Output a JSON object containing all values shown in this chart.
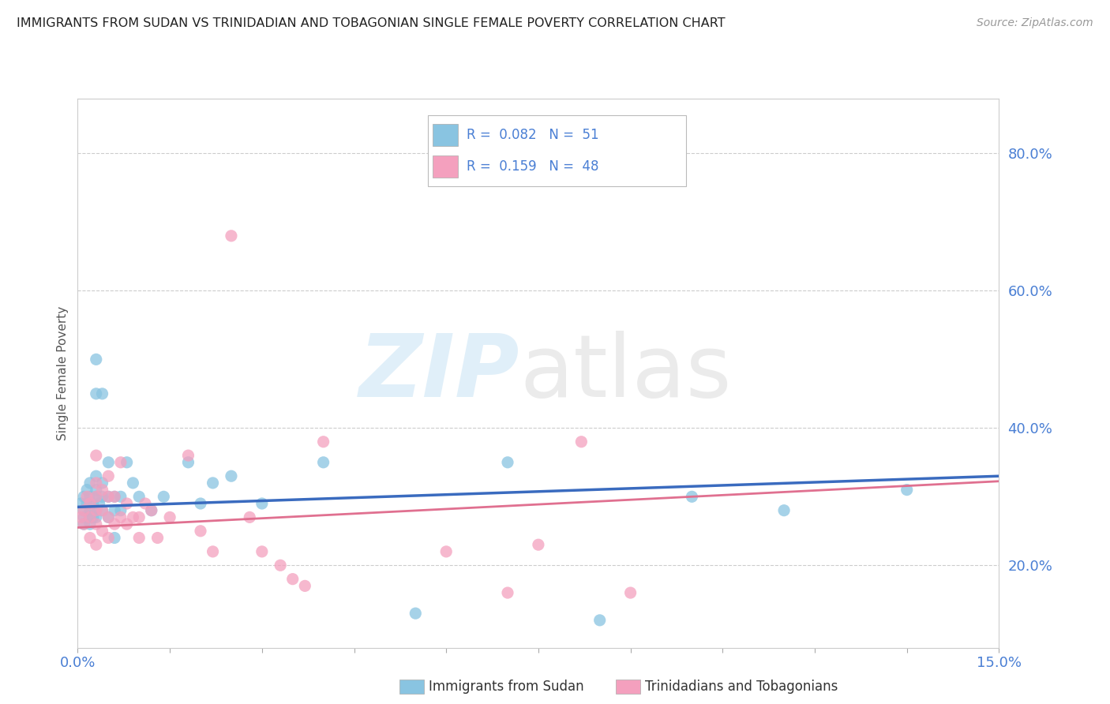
{
  "title": "IMMIGRANTS FROM SUDAN VS TRINIDADIAN AND TOBAGONIAN SINGLE FEMALE POVERTY CORRELATION CHART",
  "source": "Source: ZipAtlas.com",
  "ylabel": "Single Female Poverty",
  "xlim": [
    0.0,
    0.15
  ],
  "ylim": [
    0.08,
    0.88
  ],
  "yticks": [
    0.2,
    0.4,
    0.6,
    0.8
  ],
  "ytick_labels": [
    "20.0%",
    "40.0%",
    "60.0%",
    "80.0%"
  ],
  "xtick_positions": [
    0.0,
    0.015,
    0.03,
    0.045,
    0.06,
    0.075,
    0.09,
    0.105,
    0.12,
    0.135,
    0.15
  ],
  "color_blue": "#89c4e1",
  "color_pink": "#f4a0be",
  "color_line_blue": "#3a6bbf",
  "color_line_pink": "#e07090",
  "color_text_blue": "#4a7fd4",
  "label1": "Immigrants from Sudan",
  "label2": "Trinidadians and Tobagonians",
  "blue_x": [
    0.0005,
    0.001,
    0.001,
    0.001,
    0.001,
    0.0015,
    0.0015,
    0.002,
    0.002,
    0.002,
    0.002,
    0.002,
    0.0025,
    0.0025,
    0.003,
    0.003,
    0.003,
    0.003,
    0.003,
    0.003,
    0.003,
    0.0035,
    0.004,
    0.004,
    0.004,
    0.004,
    0.005,
    0.005,
    0.005,
    0.006,
    0.006,
    0.006,
    0.007,
    0.007,
    0.008,
    0.009,
    0.01,
    0.012,
    0.014,
    0.018,
    0.02,
    0.022,
    0.025,
    0.03,
    0.04,
    0.055,
    0.07,
    0.085,
    0.1,
    0.115,
    0.135
  ],
  "blue_y": [
    0.29,
    0.3,
    0.28,
    0.27,
    0.26,
    0.29,
    0.31,
    0.28,
    0.27,
    0.26,
    0.3,
    0.32,
    0.27,
    0.29,
    0.27,
    0.28,
    0.3,
    0.31,
    0.33,
    0.45,
    0.5,
    0.29,
    0.28,
    0.3,
    0.32,
    0.45,
    0.27,
    0.3,
    0.35,
    0.28,
    0.3,
    0.24,
    0.28,
    0.3,
    0.35,
    0.32,
    0.3,
    0.28,
    0.3,
    0.35,
    0.29,
    0.32,
    0.33,
    0.29,
    0.35,
    0.13,
    0.35,
    0.12,
    0.3,
    0.28,
    0.31
  ],
  "pink_x": [
    0.0005,
    0.001,
    0.001,
    0.0015,
    0.002,
    0.002,
    0.002,
    0.003,
    0.003,
    0.003,
    0.003,
    0.003,
    0.003,
    0.004,
    0.004,
    0.004,
    0.005,
    0.005,
    0.005,
    0.005,
    0.006,
    0.006,
    0.007,
    0.007,
    0.008,
    0.008,
    0.009,
    0.01,
    0.01,
    0.011,
    0.012,
    0.013,
    0.015,
    0.018,
    0.02,
    0.022,
    0.025,
    0.028,
    0.03,
    0.033,
    0.035,
    0.037,
    0.04,
    0.06,
    0.07,
    0.075,
    0.082,
    0.09
  ],
  "pink_y": [
    0.27,
    0.26,
    0.28,
    0.3,
    0.24,
    0.27,
    0.29,
    0.23,
    0.26,
    0.28,
    0.3,
    0.32,
    0.36,
    0.25,
    0.28,
    0.31,
    0.24,
    0.27,
    0.3,
    0.33,
    0.26,
    0.3,
    0.27,
    0.35,
    0.26,
    0.29,
    0.27,
    0.24,
    0.27,
    0.29,
    0.28,
    0.24,
    0.27,
    0.36,
    0.25,
    0.22,
    0.68,
    0.27,
    0.22,
    0.2,
    0.18,
    0.17,
    0.38,
    0.22,
    0.16,
    0.23,
    0.38,
    0.16
  ]
}
